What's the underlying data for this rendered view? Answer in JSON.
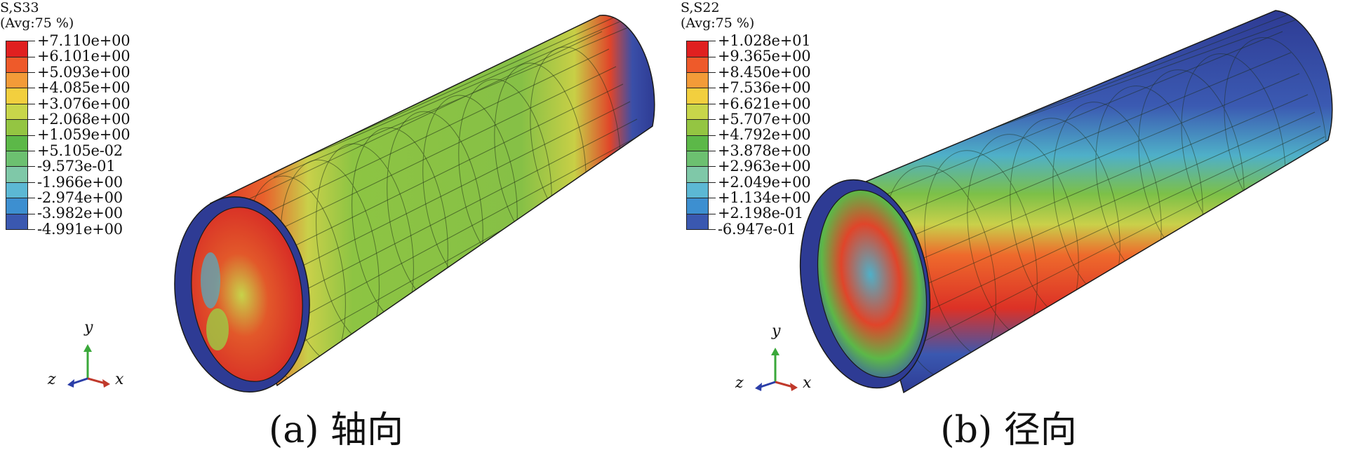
{
  "panels": [
    {
      "id": "a",
      "variable": "S,S33",
      "averaging": "(Avg:75 %)",
      "caption": "(a) 轴向",
      "legend": {
        "labels": [
          "+7.110e+00",
          "+6.101e+00",
          "+5.093e+00",
          "+4.085e+00",
          "+3.076e+00",
          "+2.068e+00",
          "+1.059e+00",
          "+5.105e-02",
          "-9.573e-01",
          "-1.966e+00",
          "-2.974e+00",
          "-3.982e+00",
          "-4.991e+00"
        ]
      },
      "triad": {
        "y": "y",
        "z": "z",
        "x": "x"
      }
    },
    {
      "id": "b",
      "variable": "S,S22",
      "averaging": "(Avg:75 %)",
      "caption": "(b) 径向",
      "legend": {
        "labels": [
          "+1.028e+01",
          "+9.365e+00",
          "+8.450e+00",
          "+7.536e+00",
          "+6.621e+00",
          "+5.707e+00",
          "+4.792e+00",
          "+3.878e+00",
          "+2.963e+00",
          "+2.049e+00",
          "+1.134e+00",
          "+2.198e-01",
          "-6.947e-01"
        ]
      },
      "triad": {
        "y": "y",
        "z": "z",
        "x": "x"
      }
    }
  ],
  "colormap": [
    "#e02020",
    "#ee5a2a",
    "#f39b38",
    "#f2cf3e",
    "#c8d64a",
    "#94c542",
    "#5cb848",
    "#6cc070",
    "#7fc8a8",
    "#5cb8d4",
    "#3d8fd0",
    "#3a58b0",
    "#2e3b94"
  ],
  "axis_colors": {
    "y": "#3aa83a",
    "x": "#c0392b",
    "z": "#2b3ea8"
  }
}
